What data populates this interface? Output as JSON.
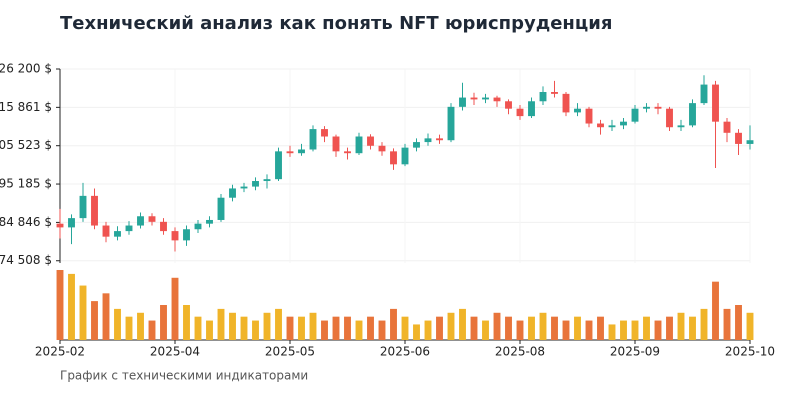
{
  "chart_data": {
    "type": "candlestick",
    "title": "Технический анализ как понять NFT юриспруденция",
    "caption": "График с техническими индикаторами",
    "categories": [
      "2025-02",
      null,
      null,
      null,
      null,
      null,
      null,
      null,
      null,
      null,
      "2025-04",
      null,
      null,
      null,
      null,
      null,
      null,
      null,
      null,
      null,
      "2025-05",
      null,
      null,
      null,
      null,
      null,
      null,
      null,
      null,
      null,
      "2025-06",
      null,
      null,
      null,
      null,
      null,
      null,
      null,
      null,
      null,
      "2025-08",
      null,
      null,
      null,
      null,
      null,
      null,
      null,
      null,
      null,
      "2025-09",
      null,
      null,
      null,
      null,
      null,
      null,
      null,
      null,
      null,
      "2025-10"
    ],
    "open": [
      84500,
      83500,
      86000,
      92000,
      84000,
      81000,
      82500,
      84000,
      86500,
      85000,
      82500,
      80000,
      83000,
      84500,
      85500,
      91500,
      94000,
      94500,
      96000,
      96500,
      104000,
      103500,
      104500,
      110000,
      108000,
      104000,
      103500,
      108000,
      105500,
      104000,
      100500,
      105000,
      106500,
      107500,
      107000,
      116000,
      118500,
      118000,
      118500,
      117500,
      115500,
      113500,
      117500,
      120000,
      119500,
      114500,
      115500,
      111500,
      110500,
      111000,
      112000,
      115500,
      116000,
      115500,
      110500,
      111000,
      117000,
      122000,
      112000,
      109000,
      106000
    ],
    "high": [
      88500,
      87000,
      95500,
      94000,
      85000,
      83800,
      85200,
      87500,
      87300,
      86000,
      83500,
      84000,
      85500,
      86500,
      92500,
      95000,
      95500,
      97000,
      97800,
      105000,
      105500,
      106000,
      111000,
      110800,
      108500,
      105000,
      109000,
      108600,
      106500,
      104800,
      106000,
      107500,
      108800,
      108500,
      117000,
      122500,
      119800,
      119500,
      119000,
      118000,
      116500,
      118500,
      121500,
      123000,
      120000,
      117000,
      116000,
      112500,
      112500,
      113000,
      116500,
      117000,
      117000,
      116000,
      112500,
      118000,
      124500,
      123000,
      113000,
      110000,
      111000
    ],
    "low": [
      80500,
      79000,
      85000,
      83000,
      79500,
      80000,
      81500,
      83200,
      84000,
      81500,
      77000,
      78500,
      82000,
      83500,
      85000,
      90500,
      93000,
      93500,
      94000,
      96000,
      102500,
      102800,
      104000,
      106500,
      102500,
      101800,
      103000,
      104500,
      102800,
      99000,
      100000,
      104000,
      105500,
      106000,
      106500,
      115000,
      116500,
      117000,
      116000,
      114000,
      112500,
      113000,
      116500,
      118500,
      113500,
      113500,
      110500,
      108500,
      109500,
      110000,
      111500,
      114500,
      114000,
      109500,
      109500,
      110500,
      116500,
      99500,
      106500,
      103000,
      104500
    ],
    "close": [
      83500,
      86000,
      92000,
      84000,
      81000,
      82500,
      84000,
      86500,
      85000,
      82500,
      80000,
      83000,
      84500,
      85500,
      91500,
      94000,
      94500,
      96000,
      96500,
      104000,
      103500,
      104500,
      110000,
      108000,
      104000,
      103500,
      108000,
      105500,
      104000,
      100500,
      105000,
      106500,
      107500,
      107000,
      116000,
      118500,
      118000,
      118500,
      117500,
      115500,
      113500,
      117500,
      120000,
      119500,
      114500,
      115500,
      111500,
      110500,
      111000,
      112000,
      115500,
      116000,
      115500,
      110500,
      111000,
      117000,
      122000,
      112000,
      109000,
      106000,
      107000
    ],
    "volume": [
      90,
      85,
      70,
      50,
      60,
      40,
      30,
      35,
      25,
      45,
      80,
      45,
      30,
      25,
      40,
      35,
      30,
      25,
      35,
      40,
      30,
      30,
      35,
      25,
      30,
      30,
      25,
      30,
      25,
      40,
      30,
      20,
      25,
      30,
      35,
      40,
      30,
      25,
      35,
      30,
      25,
      30,
      35,
      30,
      25,
      30,
      25,
      30,
      20,
      25,
      25,
      30,
      25,
      30,
      35,
      30,
      40,
      75,
      40,
      45,
      35
    ],
    "up_color": "#26a69a",
    "down_color": "#ef5350",
    "volume_up_color": "#f0b429",
    "volume_down_color": "#e8743b",
    "ylim": [
      73900,
      126200
    ],
    "yticks": [
      {
        "value": 74508,
        "label": "74 508 $"
      },
      {
        "value": 84846,
        "label": "84 846 $"
      },
      {
        "value": 95185,
        "label": "95 185 $"
      },
      {
        "value": 105523,
        "label": "105 523 $"
      },
      {
        "value": 115861,
        "label": "115 861 $"
      },
      {
        "value": 126200,
        "label": "126 200 $"
      }
    ],
    "grid": true
  }
}
